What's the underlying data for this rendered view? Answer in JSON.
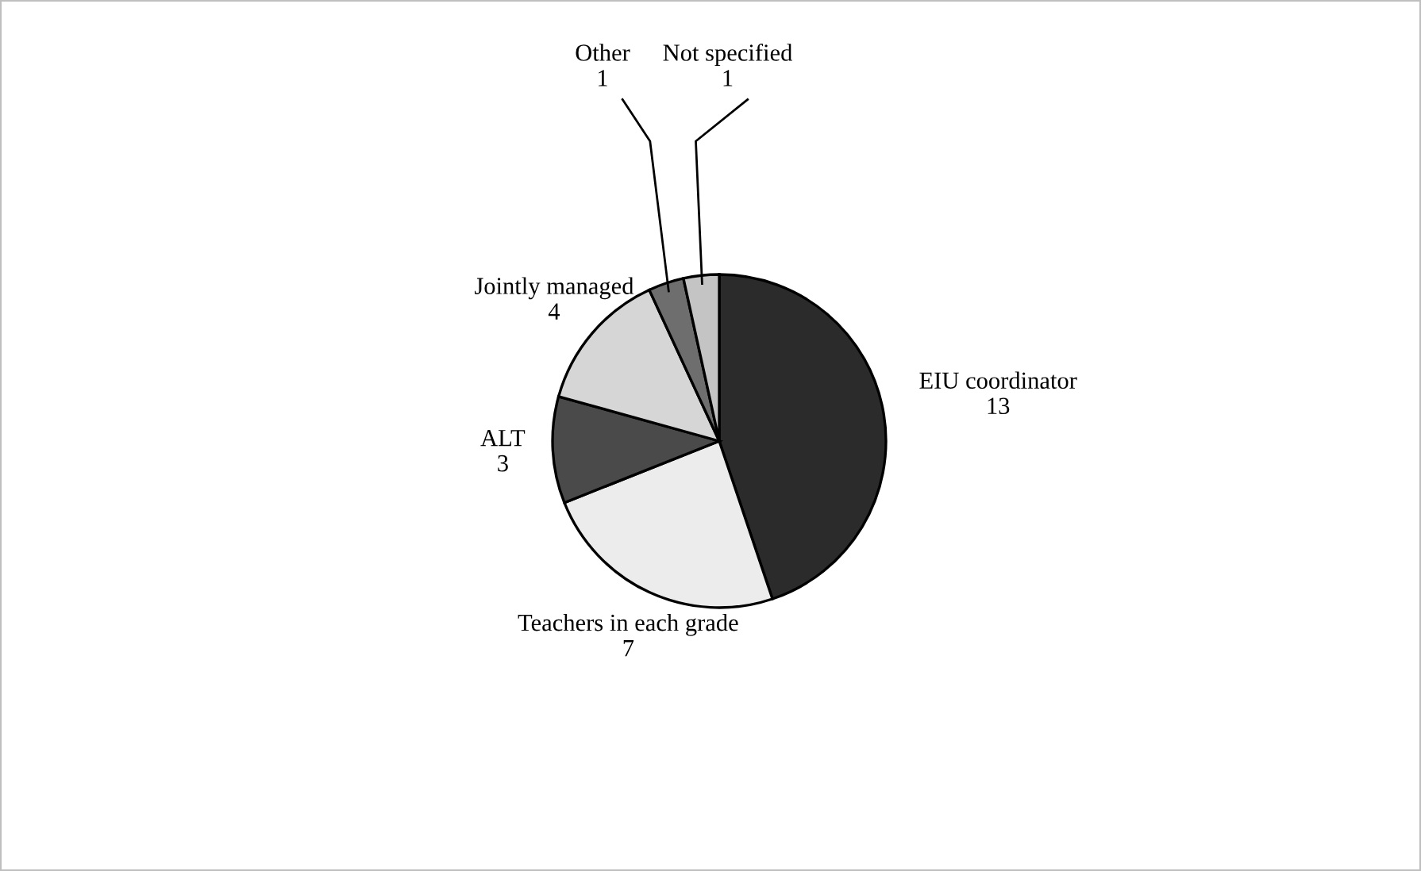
{
  "chart_data": {
    "type": "pie",
    "categories": [
      "EIU coordinator",
      "Teachers in each grade",
      "ALT",
      "Jointly managed",
      "Other",
      "Not specified"
    ],
    "values": [
      13,
      7,
      3,
      4,
      1,
      1
    ],
    "colors": [
      "#2b2b2b",
      "#ececec",
      "#4a4a4a",
      "#d6d6d6",
      "#6e6e6e",
      "#c4c4c4"
    ],
    "data_labels": true
  }
}
